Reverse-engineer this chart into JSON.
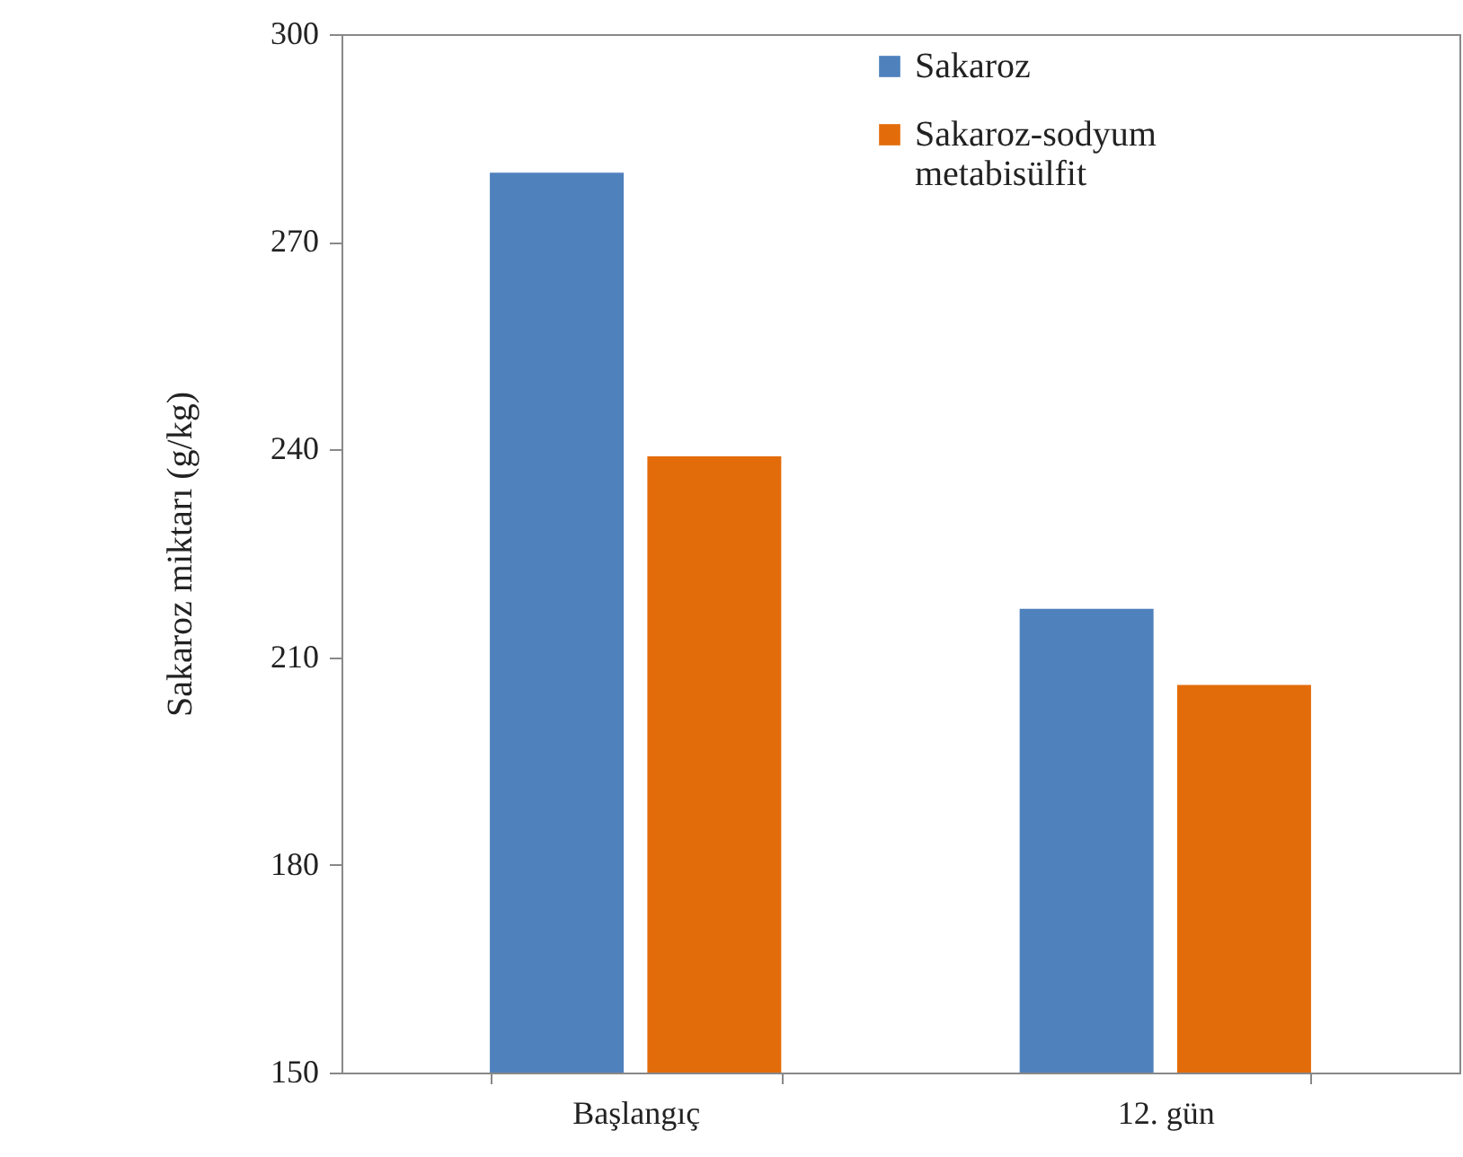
{
  "chart_data": {
    "type": "bar",
    "ylabel": "Sakaroz miktarı (g/kg)",
    "categories": [
      "Başlangıç",
      "12. gün"
    ],
    "series": [
      {
        "name": "Sakaroz",
        "color": "#4f81bd",
        "values": [
          280,
          217
        ]
      },
      {
        "name": "Sakaroz-sodyum metabisülfit",
        "color": "#e36c0a",
        "values": [
          239,
          206
        ]
      }
    ],
    "ylim": [
      150,
      300
    ],
    "yticks": [
      150,
      180,
      210,
      240,
      270,
      300
    ],
    "grid": false,
    "legend": "top"
  }
}
